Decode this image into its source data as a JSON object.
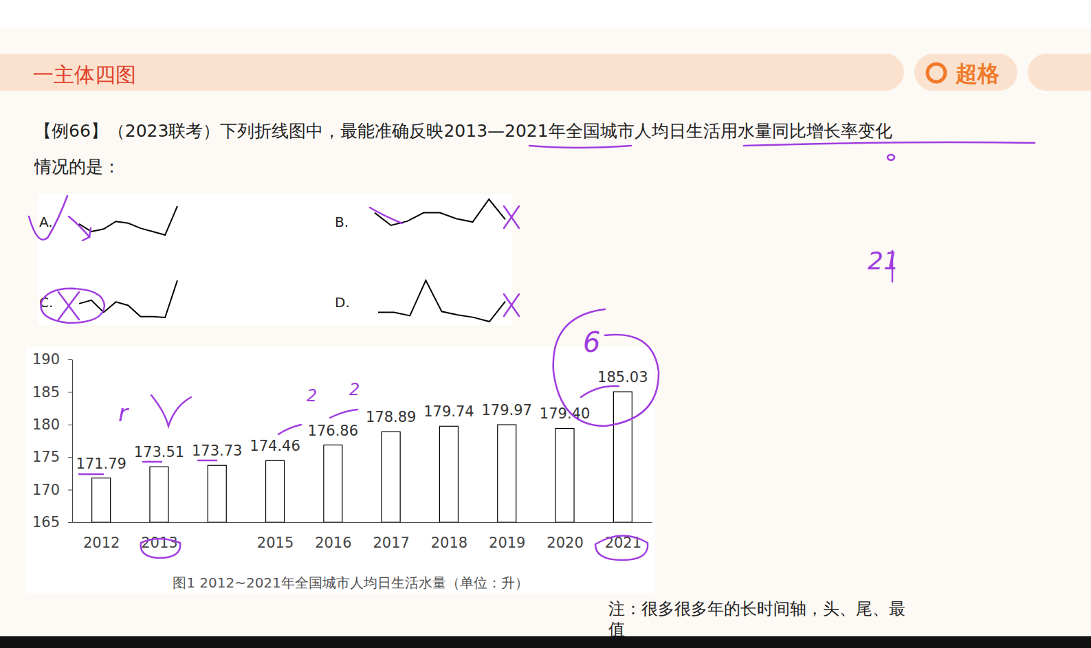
{
  "header": {
    "title": "一主体四图",
    "logo": "超格"
  },
  "question": [
    "【例66】（2023联考）下列折线图中，最能准确反映2013—2021年全国城市人均日生活用水量同比增长率变化",
    "情况的是："
  ],
  "note": [
    "注：很多很多年的长时间轴，头、尾、最",
    "值"
  ],
  "annotations": [
    "r",
    "2",
    "2",
    "6",
    "21"
  ],
  "chart_data": [
    {
      "type": "bar",
      "title": "图1  2012~2021年全国城市人均日生活水量（单位：升）",
      "categories": [
        "2012",
        "2013",
        null,
        "2015",
        "2016",
        "2017",
        "2018",
        "2019",
        "2020",
        "2021"
      ],
      "values": [
        171.79,
        173.51,
        173.73,
        174.46,
        176.86,
        178.89,
        179.74,
        179.97,
        179.4,
        185.03
      ],
      "value_labels": [
        "171.79",
        "173.51",
        "173.73",
        "174.46",
        "176.86",
        "178.89",
        "179.74",
        "179.97",
        "179.40",
        "185.03"
      ],
      "color": "#ffffff",
      "ylim": [
        165,
        190
      ],
      "yticks": [
        165,
        170,
        175,
        180,
        185,
        190
      ],
      "grid": false,
      "data_labels": true
    },
    {
      "type": "line",
      "title": "A.",
      "categories": [
        null,
        null,
        null,
        null,
        null,
        null,
        null,
        null,
        null
      ],
      "values": [
        1.0,
        0.1,
        0.4,
        1.3,
        1.1,
        0.5,
        0.1,
        -0.3,
        3.1
      ],
      "color": "#000000",
      "tick_labels": false
    },
    {
      "type": "line",
      "title": "B.",
      "categories": [
        null,
        null,
        null,
        null,
        null,
        null,
        null,
        null,
        null
      ],
      "values": [
        2.0,
        0.5,
        1.0,
        2.0,
        2.0,
        1.3,
        0.9,
        3.6,
        1.2
      ],
      "color": "#000000",
      "tick_labels": false
    },
    {
      "type": "line",
      "title": "C.",
      "categories": [
        null,
        null,
        null,
        null,
        null,
        null,
        null,
        null,
        null
      ],
      "values": [
        1.8,
        2.2,
        0.8,
        2.0,
        1.6,
        0.3,
        0.3,
        0.2,
        4.5
      ],
      "color": "#000000",
      "tick_labels": false
    },
    {
      "type": "line",
      "title": "D.",
      "categories": [
        null,
        null,
        null,
        null,
        null,
        null,
        null,
        null,
        null
      ],
      "values": [
        1.2,
        1.2,
        0.8,
        5.0,
        1.3,
        0.9,
        0.6,
        0.1,
        2.5
      ],
      "color": "#000000",
      "tick_labels": false
    }
  ]
}
